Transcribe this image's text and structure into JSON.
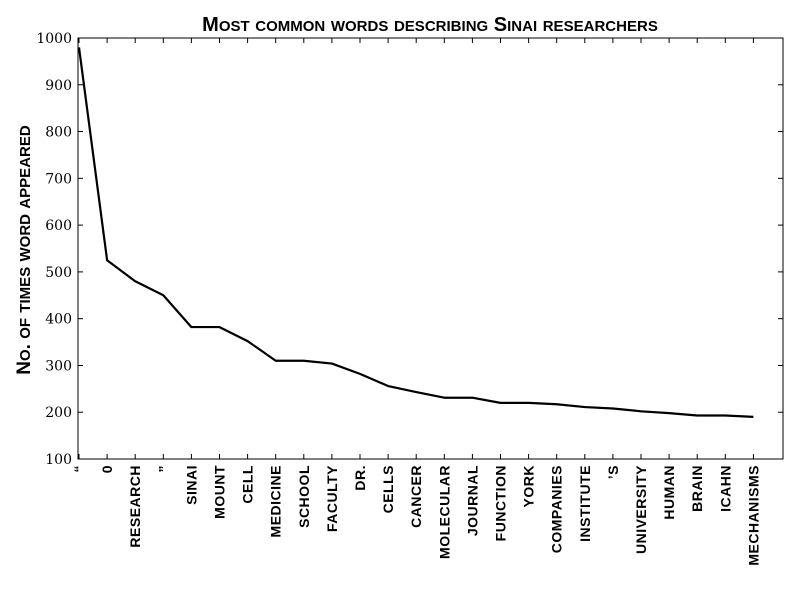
{
  "chart_data": {
    "type": "line",
    "title": "Most common words describing Sinai researchers",
    "xlabel": "",
    "ylabel": "No. of times word appeared",
    "ylim": [
      100,
      1000
    ],
    "yticks": [
      100,
      200,
      300,
      400,
      500,
      600,
      700,
      800,
      900,
      1000
    ],
    "grid": false,
    "categories": [
      "“",
      "0",
      "RESEARCH",
      "”",
      "SINAI",
      "MOUNT",
      "CELL",
      "MEDICINE",
      "SCHOOL",
      "FACULTY",
      "DR.",
      "CELLS",
      "CANCER",
      "MOLECULAR",
      "JOURNAL",
      "FUNCTION",
      "YORK",
      "COMPANIES",
      "INSTITUTE",
      "’S",
      "UNIVERSITY",
      "HUMAN",
      "BRAIN",
      "ICAHN",
      "MECHANISMS"
    ],
    "series": [
      {
        "values": [
          980,
          525,
          480,
          450,
          382,
          382,
          352,
          310,
          310,
          304,
          282,
          256,
          243,
          231,
          231,
          220,
          220,
          217,
          211,
          208,
          202,
          198,
          193,
          193,
          190
        ],
        "color": "#000000"
      }
    ]
  }
}
